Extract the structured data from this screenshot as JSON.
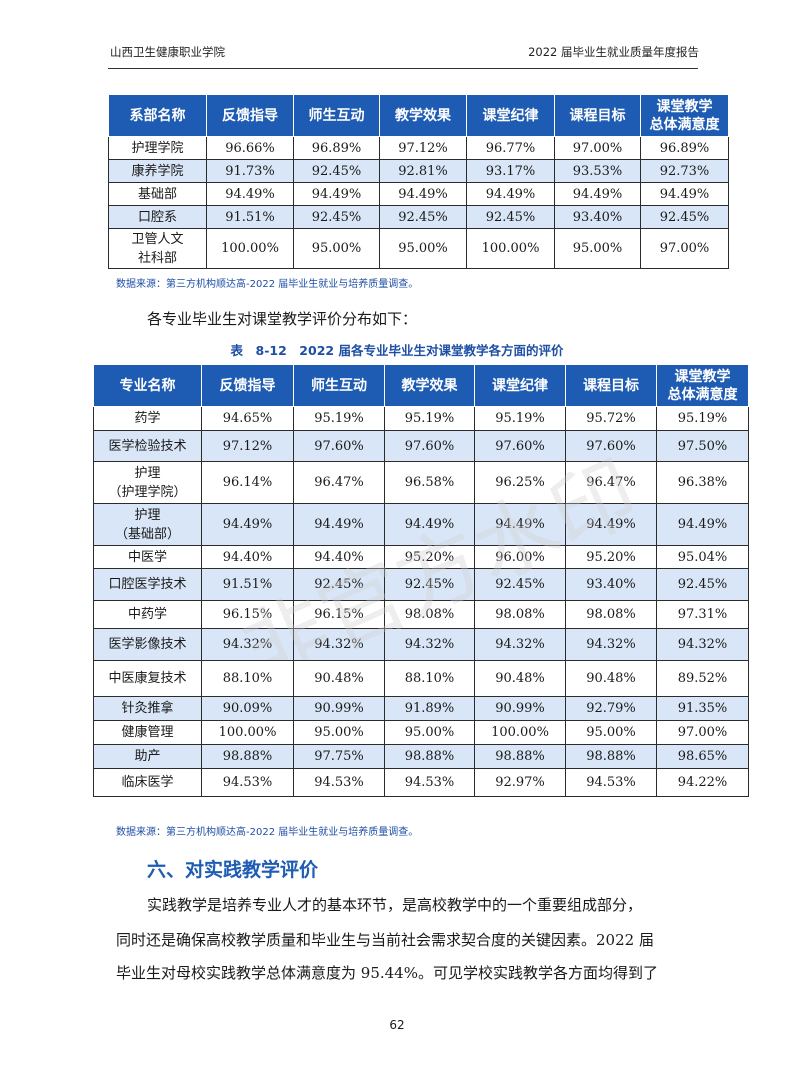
{
  "header": {
    "school": "山西卫生健康职业学院",
    "report": "2022 届毕业生就业质量年度报告"
  },
  "table1": {
    "headers": [
      "系部名称",
      "反馈指导",
      "师生互动",
      "教学效果",
      "课堂纪律",
      "课程目标",
      "课堂教学\n总体满意度"
    ],
    "rows": [
      [
        "护理学院",
        "96.66%",
        "96.89%",
        "97.12%",
        "96.77%",
        "97.00%",
        "96.89%"
      ],
      [
        "康养学院",
        "91.73%",
        "92.45%",
        "92.81%",
        "93.17%",
        "93.53%",
        "92.73%"
      ],
      [
        "基础部",
        "94.49%",
        "94.49%",
        "94.49%",
        "94.49%",
        "94.49%",
        "94.49%"
      ],
      [
        "口腔系",
        "91.51%",
        "92.45%",
        "92.45%",
        "92.45%",
        "93.40%",
        "92.45%"
      ],
      [
        "卫管人文\n社科部",
        "100.00%",
        "95.00%",
        "95.00%",
        "100.00%",
        "95.00%",
        "97.00%"
      ]
    ],
    "source": "数据来源：第三方机构顺达高-2022 届毕业生就业与培养质量调查。"
  },
  "intro_line": "各专业毕业生对课堂教学评价分布如下：",
  "table2": {
    "caption": "表　8-12　2022 届各专业毕业生对课堂教学各方面的评价",
    "headers": [
      "专业名称",
      "反馈指导",
      "师生互动",
      "教学效果",
      "课堂纪律",
      "课程目标",
      "课堂教学\n总体满意度"
    ],
    "rows": [
      [
        "药学",
        "94.65%",
        "95.19%",
        "95.19%",
        "95.19%",
        "95.72%",
        "95.19%"
      ],
      [
        "医学检验技术",
        "97.12%",
        "97.60%",
        "97.60%",
        "97.60%",
        "97.60%",
        "97.50%"
      ],
      [
        "护理\n（护理学院）",
        "96.14%",
        "96.47%",
        "96.58%",
        "96.25%",
        "96.47%",
        "96.38%"
      ],
      [
        "护理\n（基础部）",
        "94.49%",
        "94.49%",
        "94.49%",
        "94.49%",
        "94.49%",
        "94.49%"
      ],
      [
        "中医学",
        "94.40%",
        "94.40%",
        "95.20%",
        "96.00%",
        "95.20%",
        "95.04%"
      ],
      [
        "口腔医学技术",
        "91.51%",
        "92.45%",
        "92.45%",
        "92.45%",
        "93.40%",
        "92.45%"
      ],
      [
        "中药学",
        "96.15%",
        "96.15%",
        "98.08%",
        "98.08%",
        "98.08%",
        "97.31%"
      ],
      [
        "医学影像技术",
        "94.32%",
        "94.32%",
        "94.32%",
        "94.32%",
        "94.32%",
        "94.32%"
      ],
      [
        "中医康复技术",
        "88.10%",
        "90.48%",
        "88.10%",
        "90.48%",
        "90.48%",
        "89.52%"
      ],
      [
        "针灸推拿",
        "90.09%",
        "90.99%",
        "91.89%",
        "90.99%",
        "92.79%",
        "91.35%"
      ],
      [
        "健康管理",
        "100.00%",
        "95.00%",
        "95.00%",
        "100.00%",
        "95.00%",
        "97.00%"
      ],
      [
        "助产",
        "98.88%",
        "97.75%",
        "98.88%",
        "98.88%",
        "98.88%",
        "98.65%"
      ],
      [
        "临床医学",
        "94.53%",
        "94.53%",
        "94.53%",
        "92.97%",
        "94.53%",
        "94.22%"
      ]
    ],
    "source": "数据来源：第三方机构顺达高-2022 届毕业生就业与培养质量调查。"
  },
  "section": {
    "title": "六、对实践教学评价",
    "lines": [
      "实践教学是培养专业人才的基本环节，是高校教学中的一个重要组成部分，",
      "同时还是确保高校教学质量和毕业生与当前社会需求契合度的关键因素。2022 届",
      "毕业生对母校实践教学总体满意度为 95.44%。可见学校实践教学各方面均得到了"
    ]
  },
  "watermark": "非官方水印",
  "page_number": "62",
  "colors": {
    "header_blue": "#1e5bb3",
    "stripe": "#d9e6f7",
    "source_text": "#1e4fa5"
  }
}
